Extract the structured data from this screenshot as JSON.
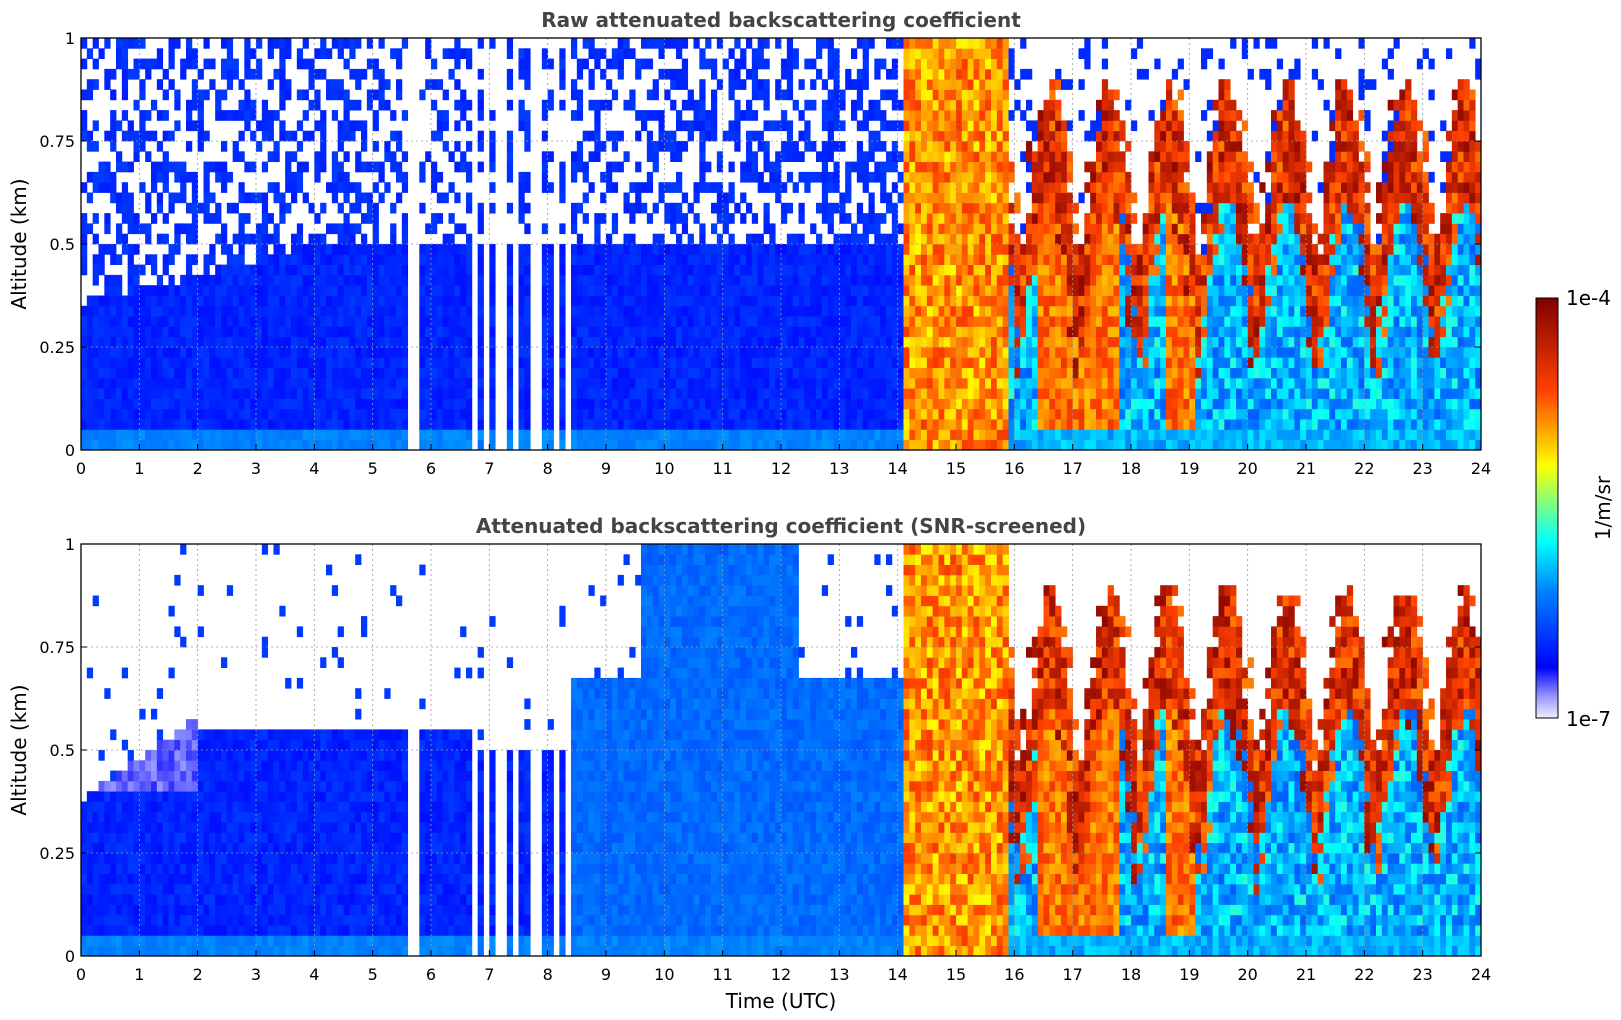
{
  "chart_data": [
    {
      "type": "heatmap",
      "title": "Raw attenuated backscattering coefficient",
      "xlabel": "",
      "ylabel": "Altitude (km)",
      "xlim": [
        0,
        24
      ],
      "ylim": [
        0,
        1
      ],
      "x_ticks": [
        "0",
        "1",
        "2",
        "3",
        "4",
        "5",
        "6",
        "7",
        "8",
        "9",
        "10",
        "11",
        "12",
        "13",
        "14",
        "15",
        "16",
        "17",
        "18",
        "19",
        "20",
        "21",
        "22",
        "23",
        "24"
      ],
      "y_ticks": [
        "0",
        "0.25",
        "0.5",
        "0.75",
        "1"
      ],
      "grid": true,
      "colorscale": "jet",
      "data_gaps_hours": [
        [
          5.62,
          5.78
        ],
        [
          6.72,
          6.78
        ],
        [
          6.9,
          7.02
        ],
        [
          7.12,
          7.3
        ],
        [
          7.4,
          7.52
        ],
        [
          7.7,
          7.86
        ],
        [
          8.08,
          8.22
        ],
        [
          8.3,
          8.36
        ]
      ],
      "regimes": [
        {
          "from": 0,
          "to": 14.1,
          "description_level": "low backscatter, dense near surface, noisy aloft"
        },
        {
          "from": 14.1,
          "to": 15.9,
          "description_level": "strong signal full column"
        },
        {
          "from": 15.9,
          "to": 24,
          "description_level": "intermittent clouds/rain, tops 0.5-1 km"
        }
      ]
    },
    {
      "type": "heatmap",
      "title": "Attenuated backscattering coefficient (SNR-screened)",
      "xlabel": "Time (UTC)",
      "ylabel": "Altitude (km)",
      "xlim": [
        0,
        24
      ],
      "ylim": [
        0,
        1
      ],
      "x_ticks": [
        "0",
        "1",
        "2",
        "3",
        "4",
        "5",
        "6",
        "7",
        "8",
        "9",
        "10",
        "11",
        "12",
        "13",
        "14",
        "15",
        "16",
        "17",
        "18",
        "19",
        "20",
        "21",
        "22",
        "23",
        "24"
      ],
      "y_ticks": [
        "0",
        "0.25",
        "0.5",
        "0.75",
        "1"
      ],
      "grid": true,
      "colorscale": "jet"
    }
  ],
  "colorbar": {
    "label": "1/m/sr",
    "max_label": "1e-4",
    "min_label": "1e-7",
    "scale": "log",
    "range": [
      1e-07,
      0.0001
    ]
  }
}
